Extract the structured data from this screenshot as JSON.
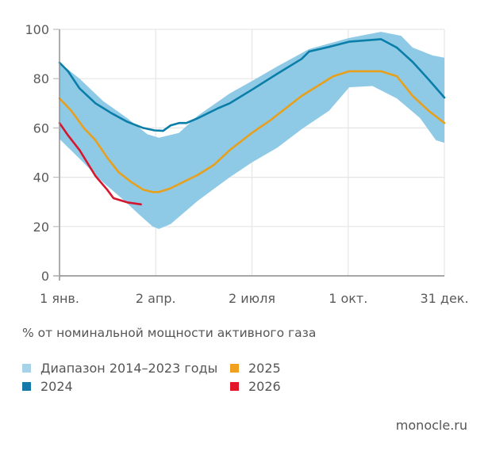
{
  "chart_data": {
    "type": "line",
    "title": "",
    "ylabel": "% от номинальной мощности активного газа",
    "xlabel": "",
    "ylim": [
      0,
      100
    ],
    "xlim": [
      0,
      364
    ],
    "yticks": [
      0,
      20,
      40,
      60,
      80,
      100
    ],
    "xticks": [
      {
        "day": 0,
        "label": "1 янв."
      },
      {
        "day": 91,
        "label": "2 апр."
      },
      {
        "day": 182,
        "label": "2 июля"
      },
      {
        "day": 273,
        "label": "1 окт."
      },
      {
        "day": 364,
        "label": "31 дек."
      }
    ],
    "grid": true,
    "band": {
      "name": "Диапазон 2014–2023 годы",
      "color": "#8ecae6",
      "upper": [
        [
          0,
          86.5
        ],
        [
          19,
          80
        ],
        [
          41,
          71
        ],
        [
          64,
          64
        ],
        [
          83,
          57.5
        ],
        [
          94,
          56
        ],
        [
          113,
          58
        ],
        [
          131,
          65
        ],
        [
          161,
          74
        ],
        [
          182,
          79
        ],
        [
          206,
          85
        ],
        [
          236,
          92
        ],
        [
          274,
          96.5
        ],
        [
          304,
          99
        ],
        [
          323,
          97.4
        ],
        [
          334,
          92.6
        ],
        [
          353,
          89.4
        ],
        [
          364,
          88.5
        ]
      ],
      "lower": [
        [
          0,
          55.5
        ],
        [
          19,
          47.5
        ],
        [
          41,
          38
        ],
        [
          60,
          31
        ],
        [
          75,
          25
        ],
        [
          88,
          20
        ],
        [
          94,
          19
        ],
        [
          105,
          21
        ],
        [
          131,
          30.5
        ],
        [
          161,
          40
        ],
        [
          182,
          46
        ],
        [
          206,
          52
        ],
        [
          229,
          59.5
        ],
        [
          255,
          67
        ],
        [
          274,
          76.5
        ],
        [
          296,
          77
        ],
        [
          319,
          72
        ],
        [
          341,
          64
        ],
        [
          356,
          55
        ],
        [
          364,
          54
        ]
      ]
    },
    "series": [
      {
        "name": "2024",
        "color": "#0a7ea8",
        "points": [
          [
            0,
            86.5
          ],
          [
            8,
            83
          ],
          [
            19,
            76
          ],
          [
            34,
            70
          ],
          [
            49,
            66
          ],
          [
            64,
            62.5
          ],
          [
            79,
            60
          ],
          [
            90,
            59
          ],
          [
            98,
            58.8
          ],
          [
            105,
            61
          ],
          [
            113,
            62
          ],
          [
            120,
            62
          ],
          [
            131,
            64
          ],
          [
            150,
            68
          ],
          [
            161,
            70
          ],
          [
            182,
            75.5
          ],
          [
            206,
            82
          ],
          [
            229,
            88
          ],
          [
            236,
            91
          ],
          [
            256,
            93
          ],
          [
            274,
            95
          ],
          [
            304,
            96
          ],
          [
            319,
            92.6
          ],
          [
            334,
            86.8
          ],
          [
            349,
            79.7
          ],
          [
            364,
            72.3
          ]
        ]
      },
      {
        "name": "2025",
        "color": "#e8a01c",
        "points": [
          [
            0,
            72
          ],
          [
            11,
            67
          ],
          [
            23,
            60
          ],
          [
            34,
            55
          ],
          [
            45,
            48
          ],
          [
            56,
            42
          ],
          [
            68,
            38
          ],
          [
            79,
            35
          ],
          [
            88,
            34
          ],
          [
            94,
            34
          ],
          [
            105,
            35.5
          ],
          [
            131,
            41
          ],
          [
            146,
            45
          ],
          [
            161,
            51
          ],
          [
            182,
            58
          ],
          [
            199,
            63
          ],
          [
            229,
            73
          ],
          [
            259,
            81
          ],
          [
            274,
            83
          ],
          [
            289,
            83
          ],
          [
            304,
            83
          ],
          [
            319,
            81
          ],
          [
            334,
            73
          ],
          [
            349,
            67
          ],
          [
            364,
            62
          ]
        ]
      },
      {
        "name": "2026",
        "color": "#d4172e",
        "points": [
          [
            0,
            62
          ],
          [
            8,
            57
          ],
          [
            19,
            51
          ],
          [
            34,
            40.5
          ],
          [
            45,
            35
          ],
          [
            51,
            31.5
          ],
          [
            64,
            29.8
          ],
          [
            77,
            29
          ]
        ]
      }
    ],
    "legend": [
      {
        "label": "Диапазон 2014–2023 годы",
        "color": "#a7d3e8"
      },
      {
        "label": "2025",
        "color": "#f0a01e"
      },
      {
        "label": "2024",
        "color": "#1478a8"
      },
      {
        "label": "2026",
        "color": "#e4162a"
      }
    ],
    "legend_placement": "bottom-left"
  },
  "source": "monocle.ru"
}
